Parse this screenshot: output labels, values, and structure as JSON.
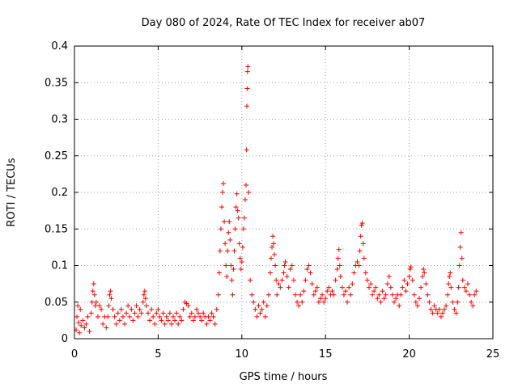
{
  "chart_data": {
    "type": "scatter",
    "title": "Day 080 of 2024, Rate Of TEC Index for receiver ab07",
    "xlabel": "GPS time / hours",
    "ylabel": "ROTI / TECUs",
    "xlim": [
      0,
      25
    ],
    "ylim": [
      0,
      0.4
    ],
    "xticks": [
      "0",
      "5",
      "10",
      "15",
      "20",
      "25"
    ],
    "yticks": [
      "0",
      "0.05",
      "0.1",
      "0.15",
      "0.2",
      "0.25",
      "0.3",
      "0.35",
      "0.4"
    ],
    "grid": true,
    "marker": "+",
    "color": "#ff0000",
    "series": [
      {
        "name": "ROTI",
        "points": [
          [
            0.1,
            0.012
          ],
          [
            0.15,
            0.03
          ],
          [
            0.2,
            0.045
          ],
          [
            0.25,
            0.022
          ],
          [
            0.3,
            0.008
          ],
          [
            0.35,
            0.04
          ],
          [
            0.4,
            0.018
          ],
          [
            0.5,
            0.025
          ],
          [
            0.6,
            0.015
          ],
          [
            0.7,
            0.02
          ],
          [
            0.8,
            0.03
          ],
          [
            0.9,
            0.01
          ],
          [
            1.0,
            0.035
          ],
          [
            1.05,
            0.05
          ],
          [
            1.1,
            0.065
          ],
          [
            1.15,
            0.075
          ],
          [
            1.2,
            0.06
          ],
          [
            1.25,
            0.045
          ],
          [
            1.3,
            0.05
          ],
          [
            1.4,
            0.03
          ],
          [
            1.5,
            0.045
          ],
          [
            1.6,
            0.04
          ],
          [
            1.7,
            0.02
          ],
          [
            1.8,
            0.03
          ],
          [
            1.9,
            0.015
          ],
          [
            2.0,
            0.03
          ],
          [
            2.05,
            0.045
          ],
          [
            2.1,
            0.06
          ],
          [
            2.15,
            0.065
          ],
          [
            2.2,
            0.055
          ],
          [
            2.3,
            0.04
          ],
          [
            2.4,
            0.03
          ],
          [
            2.5,
            0.02
          ],
          [
            2.6,
            0.035
          ],
          [
            2.7,
            0.025
          ],
          [
            2.8,
            0.04
          ],
          [
            2.9,
            0.03
          ],
          [
            3.0,
            0.02
          ],
          [
            3.1,
            0.035
          ],
          [
            3.2,
            0.045
          ],
          [
            3.3,
            0.03
          ],
          [
            3.4,
            0.04
          ],
          [
            3.5,
            0.025
          ],
          [
            3.6,
            0.035
          ],
          [
            3.7,
            0.045
          ],
          [
            3.8,
            0.03
          ],
          [
            3.9,
            0.04
          ],
          [
            4.0,
            0.035
          ],
          [
            4.1,
            0.05
          ],
          [
            4.15,
            0.06
          ],
          [
            4.2,
            0.065
          ],
          [
            4.25,
            0.055
          ],
          [
            4.3,
            0.045
          ],
          [
            4.4,
            0.035
          ],
          [
            4.5,
            0.025
          ],
          [
            4.6,
            0.04
          ],
          [
            4.7,
            0.03
          ],
          [
            4.8,
            0.02
          ],
          [
            4.9,
            0.035
          ],
          [
            5.0,
            0.04
          ],
          [
            5.1,
            0.03
          ],
          [
            5.2,
            0.025
          ],
          [
            5.3,
            0.035
          ],
          [
            5.4,
            0.02
          ],
          [
            5.5,
            0.03
          ],
          [
            5.6,
            0.025
          ],
          [
            5.7,
            0.035
          ],
          [
            5.8,
            0.02
          ],
          [
            5.9,
            0.03
          ],
          [
            6.0,
            0.025
          ],
          [
            6.1,
            0.035
          ],
          [
            6.2,
            0.02
          ],
          [
            6.3,
            0.03
          ],
          [
            6.4,
            0.025
          ],
          [
            6.5,
            0.04
          ],
          [
            6.6,
            0.05
          ],
          [
            6.7,
            0.048
          ],
          [
            6.8,
            0.045
          ],
          [
            6.9,
            0.03
          ],
          [
            7.0,
            0.035
          ],
          [
            7.1,
            0.025
          ],
          [
            7.2,
            0.03
          ],
          [
            7.3,
            0.04
          ],
          [
            7.4,
            0.035
          ],
          [
            7.5,
            0.03
          ],
          [
            7.6,
            0.025
          ],
          [
            7.7,
            0.035
          ],
          [
            7.8,
            0.03
          ],
          [
            7.9,
            0.02
          ],
          [
            8.0,
            0.03
          ],
          [
            8.1,
            0.025
          ],
          [
            8.2,
            0.035
          ],
          [
            8.3,
            0.03
          ],
          [
            8.4,
            0.02
          ],
          [
            8.5,
            0.04
          ],
          [
            8.6,
            0.06
          ],
          [
            8.65,
            0.09
          ],
          [
            8.7,
            0.12
          ],
          [
            8.75,
            0.15
          ],
          [
            8.8,
            0.18
          ],
          [
            8.85,
            0.2
          ],
          [
            8.9,
            0.212
          ],
          [
            8.95,
            0.16
          ],
          [
            9.0,
            0.13
          ],
          [
            9.05,
            0.1
          ],
          [
            9.1,
            0.085
          ],
          [
            9.15,
            0.12
          ],
          [
            9.2,
            0.145
          ],
          [
            9.25,
            0.16
          ],
          [
            9.3,
            0.135
          ],
          [
            9.35,
            0.1
          ],
          [
            9.4,
            0.08
          ],
          [
            9.45,
            0.06
          ],
          [
            9.5,
            0.095
          ],
          [
            9.55,
            0.12
          ],
          [
            9.6,
            0.15
          ],
          [
            9.65,
            0.18
          ],
          [
            9.7,
            0.198
          ],
          [
            9.75,
            0.175
          ],
          [
            9.8,
            0.165
          ],
          [
            9.85,
            0.13
          ],
          [
            9.9,
            0.11
          ],
          [
            9.95,
            0.095
          ],
          [
            10.0,
            0.105
          ],
          [
            10.05,
            0.125
          ],
          [
            10.1,
            0.15
          ],
          [
            10.15,
            0.165
          ],
          [
            10.2,
            0.19
          ],
          [
            10.25,
            0.21
          ],
          [
            10.28,
            0.258
          ],
          [
            10.3,
            0.318
          ],
          [
            10.32,
            0.342
          ],
          [
            10.34,
            0.365
          ],
          [
            10.36,
            0.372
          ],
          [
            10.4,
            0.2
          ],
          [
            10.5,
            0.08
          ],
          [
            10.6,
            0.06
          ],
          [
            10.7,
            0.05
          ],
          [
            10.8,
            0.04
          ],
          [
            10.9,
            0.03
          ],
          [
            11.0,
            0.045
          ],
          [
            11.1,
            0.035
          ],
          [
            11.2,
            0.04
          ],
          [
            11.3,
            0.05
          ],
          [
            11.4,
            0.03
          ],
          [
            11.5,
            0.045
          ],
          [
            11.6,
            0.06
          ],
          [
            11.7,
            0.09
          ],
          [
            11.75,
            0.11
          ],
          [
            11.8,
            0.125
          ],
          [
            11.85,
            0.14
          ],
          [
            11.9,
            0.13
          ],
          [
            11.95,
            0.115
          ],
          [
            12.0,
            0.1
          ],
          [
            12.05,
            0.08
          ],
          [
            12.1,
            0.06
          ],
          [
            12.2,
            0.075
          ],
          [
            12.3,
            0.07
          ],
          [
            12.4,
            0.08
          ],
          [
            12.5,
            0.09
          ],
          [
            12.55,
            0.1
          ],
          [
            12.6,
            0.105
          ],
          [
            12.7,
            0.085
          ],
          [
            12.8,
            0.07
          ],
          [
            12.9,
            0.095
          ],
          [
            13.0,
            0.1
          ],
          [
            13.1,
            0.08
          ],
          [
            13.2,
            0.06
          ],
          [
            13.3,
            0.05
          ],
          [
            13.4,
            0.045
          ],
          [
            13.5,
            0.06
          ],
          [
            13.6,
            0.05
          ],
          [
            13.7,
            0.065
          ],
          [
            13.8,
            0.08
          ],
          [
            13.9,
            0.095
          ],
          [
            14.0,
            0.1
          ],
          [
            14.1,
            0.09
          ],
          [
            14.2,
            0.075
          ],
          [
            14.3,
            0.06
          ],
          [
            14.4,
            0.065
          ],
          [
            14.5,
            0.07
          ],
          [
            14.6,
            0.05
          ],
          [
            14.7,
            0.055
          ],
          [
            14.8,
            0.06
          ],
          [
            14.9,
            0.05
          ],
          [
            15.0,
            0.055
          ],
          [
            15.1,
            0.065
          ],
          [
            15.2,
            0.07
          ],
          [
            15.3,
            0.06
          ],
          [
            15.4,
            0.065
          ],
          [
            15.5,
            0.06
          ],
          [
            15.6,
            0.08
          ],
          [
            15.7,
            0.095
          ],
          [
            15.75,
            0.11
          ],
          [
            15.8,
            0.122
          ],
          [
            15.85,
            0.1
          ],
          [
            15.9,
            0.085
          ],
          [
            16.0,
            0.07
          ],
          [
            16.1,
            0.06
          ],
          [
            16.2,
            0.065
          ],
          [
            16.3,
            0.05
          ],
          [
            16.4,
            0.07
          ],
          [
            16.5,
            0.06
          ],
          [
            16.6,
            0.075
          ],
          [
            16.7,
            0.09
          ],
          [
            16.8,
            0.1
          ],
          [
            16.9,
            0.105
          ],
          [
            17.0,
            0.1
          ],
          [
            17.05,
            0.12
          ],
          [
            17.1,
            0.14
          ],
          [
            17.15,
            0.155
          ],
          [
            17.2,
            0.158
          ],
          [
            17.25,
            0.13
          ],
          [
            17.3,
            0.11
          ],
          [
            17.4,
            0.09
          ],
          [
            17.5,
            0.08
          ],
          [
            17.6,
            0.07
          ],
          [
            17.7,
            0.075
          ],
          [
            17.8,
            0.06
          ],
          [
            17.9,
            0.065
          ],
          [
            18.0,
            0.07
          ],
          [
            18.1,
            0.055
          ],
          [
            18.2,
            0.06
          ],
          [
            18.3,
            0.05
          ],
          [
            18.4,
            0.065
          ],
          [
            18.5,
            0.055
          ],
          [
            18.6,
            0.06
          ],
          [
            18.7,
            0.075
          ],
          [
            18.8,
            0.085
          ],
          [
            18.9,
            0.07
          ],
          [
            19.0,
            0.06
          ],
          [
            19.1,
            0.05
          ],
          [
            19.2,
            0.055
          ],
          [
            19.3,
            0.06
          ],
          [
            19.4,
            0.045
          ],
          [
            19.5,
            0.06
          ],
          [
            19.6,
            0.07
          ],
          [
            19.7,
            0.08
          ],
          [
            19.8,
            0.065
          ],
          [
            19.9,
            0.075
          ],
          [
            20.0,
            0.085
          ],
          [
            20.05,
            0.095
          ],
          [
            20.1,
            0.098
          ],
          [
            20.2,
            0.08
          ],
          [
            20.3,
            0.06
          ],
          [
            20.4,
            0.05
          ],
          [
            20.5,
            0.045
          ],
          [
            20.6,
            0.055
          ],
          [
            20.7,
            0.07
          ],
          [
            20.8,
            0.085
          ],
          [
            20.85,
            0.095
          ],
          [
            20.9,
            0.09
          ],
          [
            21.0,
            0.075
          ],
          [
            21.1,
            0.06
          ],
          [
            21.2,
            0.05
          ],
          [
            21.3,
            0.04
          ],
          [
            21.4,
            0.035
          ],
          [
            21.5,
            0.045
          ],
          [
            21.6,
            0.04
          ],
          [
            21.7,
            0.035
          ],
          [
            21.8,
            0.04
          ],
          [
            21.9,
            0.03
          ],
          [
            22.0,
            0.035
          ],
          [
            22.1,
            0.04
          ],
          [
            22.2,
            0.045
          ],
          [
            22.3,
            0.06
          ],
          [
            22.35,
            0.075
          ],
          [
            22.4,
            0.085
          ],
          [
            22.45,
            0.09
          ],
          [
            22.5,
            0.07
          ],
          [
            22.6,
            0.05
          ],
          [
            22.7,
            0.04
          ],
          [
            22.8,
            0.035
          ],
          [
            22.9,
            0.05
          ],
          [
            22.95,
            0.07
          ],
          [
            23.0,
            0.1
          ],
          [
            23.05,
            0.125
          ],
          [
            23.1,
            0.145
          ],
          [
            23.15,
            0.11
          ],
          [
            23.2,
            0.08
          ],
          [
            23.3,
            0.07
          ],
          [
            23.4,
            0.065
          ],
          [
            23.5,
            0.075
          ],
          [
            23.6,
            0.06
          ],
          [
            23.7,
            0.05
          ],
          [
            23.8,
            0.045
          ],
          [
            23.9,
            0.06
          ],
          [
            24.0,
            0.065
          ]
        ]
      }
    ]
  }
}
